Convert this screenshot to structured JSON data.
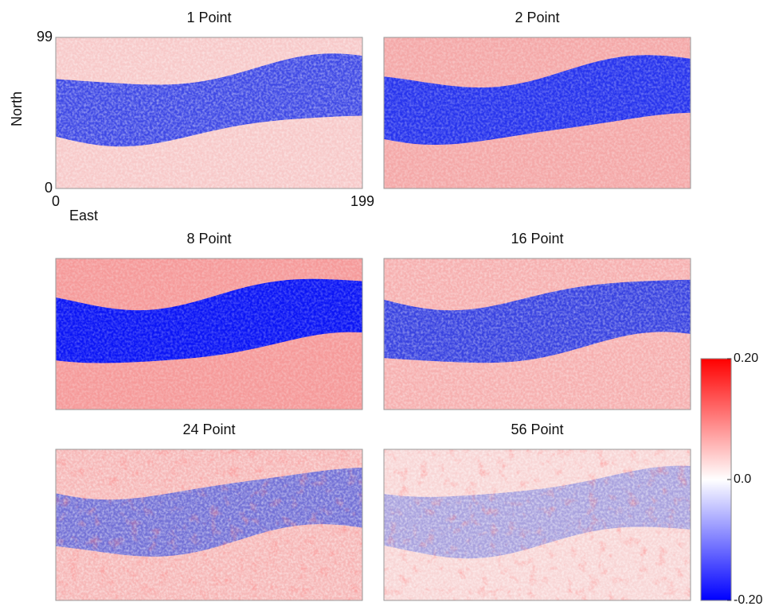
{
  "chart_data": {
    "type": "heatmap",
    "panels": [
      {
        "title": "1 Point"
      },
      {
        "title": "2 Point"
      },
      {
        "title": "8 Point"
      },
      {
        "title": "16 Point"
      },
      {
        "title": "24 Point"
      },
      {
        "title": "56 Point"
      }
    ],
    "xlabel": "East",
    "ylabel": "North",
    "xlim": [
      0,
      199
    ],
    "xticks": [
      0,
      199
    ],
    "ylim": [
      0,
      99
    ],
    "yticks": [
      0,
      99
    ],
    "colorbar": {
      "lim": [
        -0.2,
        0.2
      ],
      "ticks": [
        {
          "value": 0.2,
          "label": "0.20"
        },
        {
          "value": 0,
          "label": "0.0"
        },
        {
          "value": -0.2,
          "label": "-0.20"
        }
      ],
      "colors": [
        "#0000ff",
        "#ffffff",
        "#ff0000"
      ]
    }
  }
}
